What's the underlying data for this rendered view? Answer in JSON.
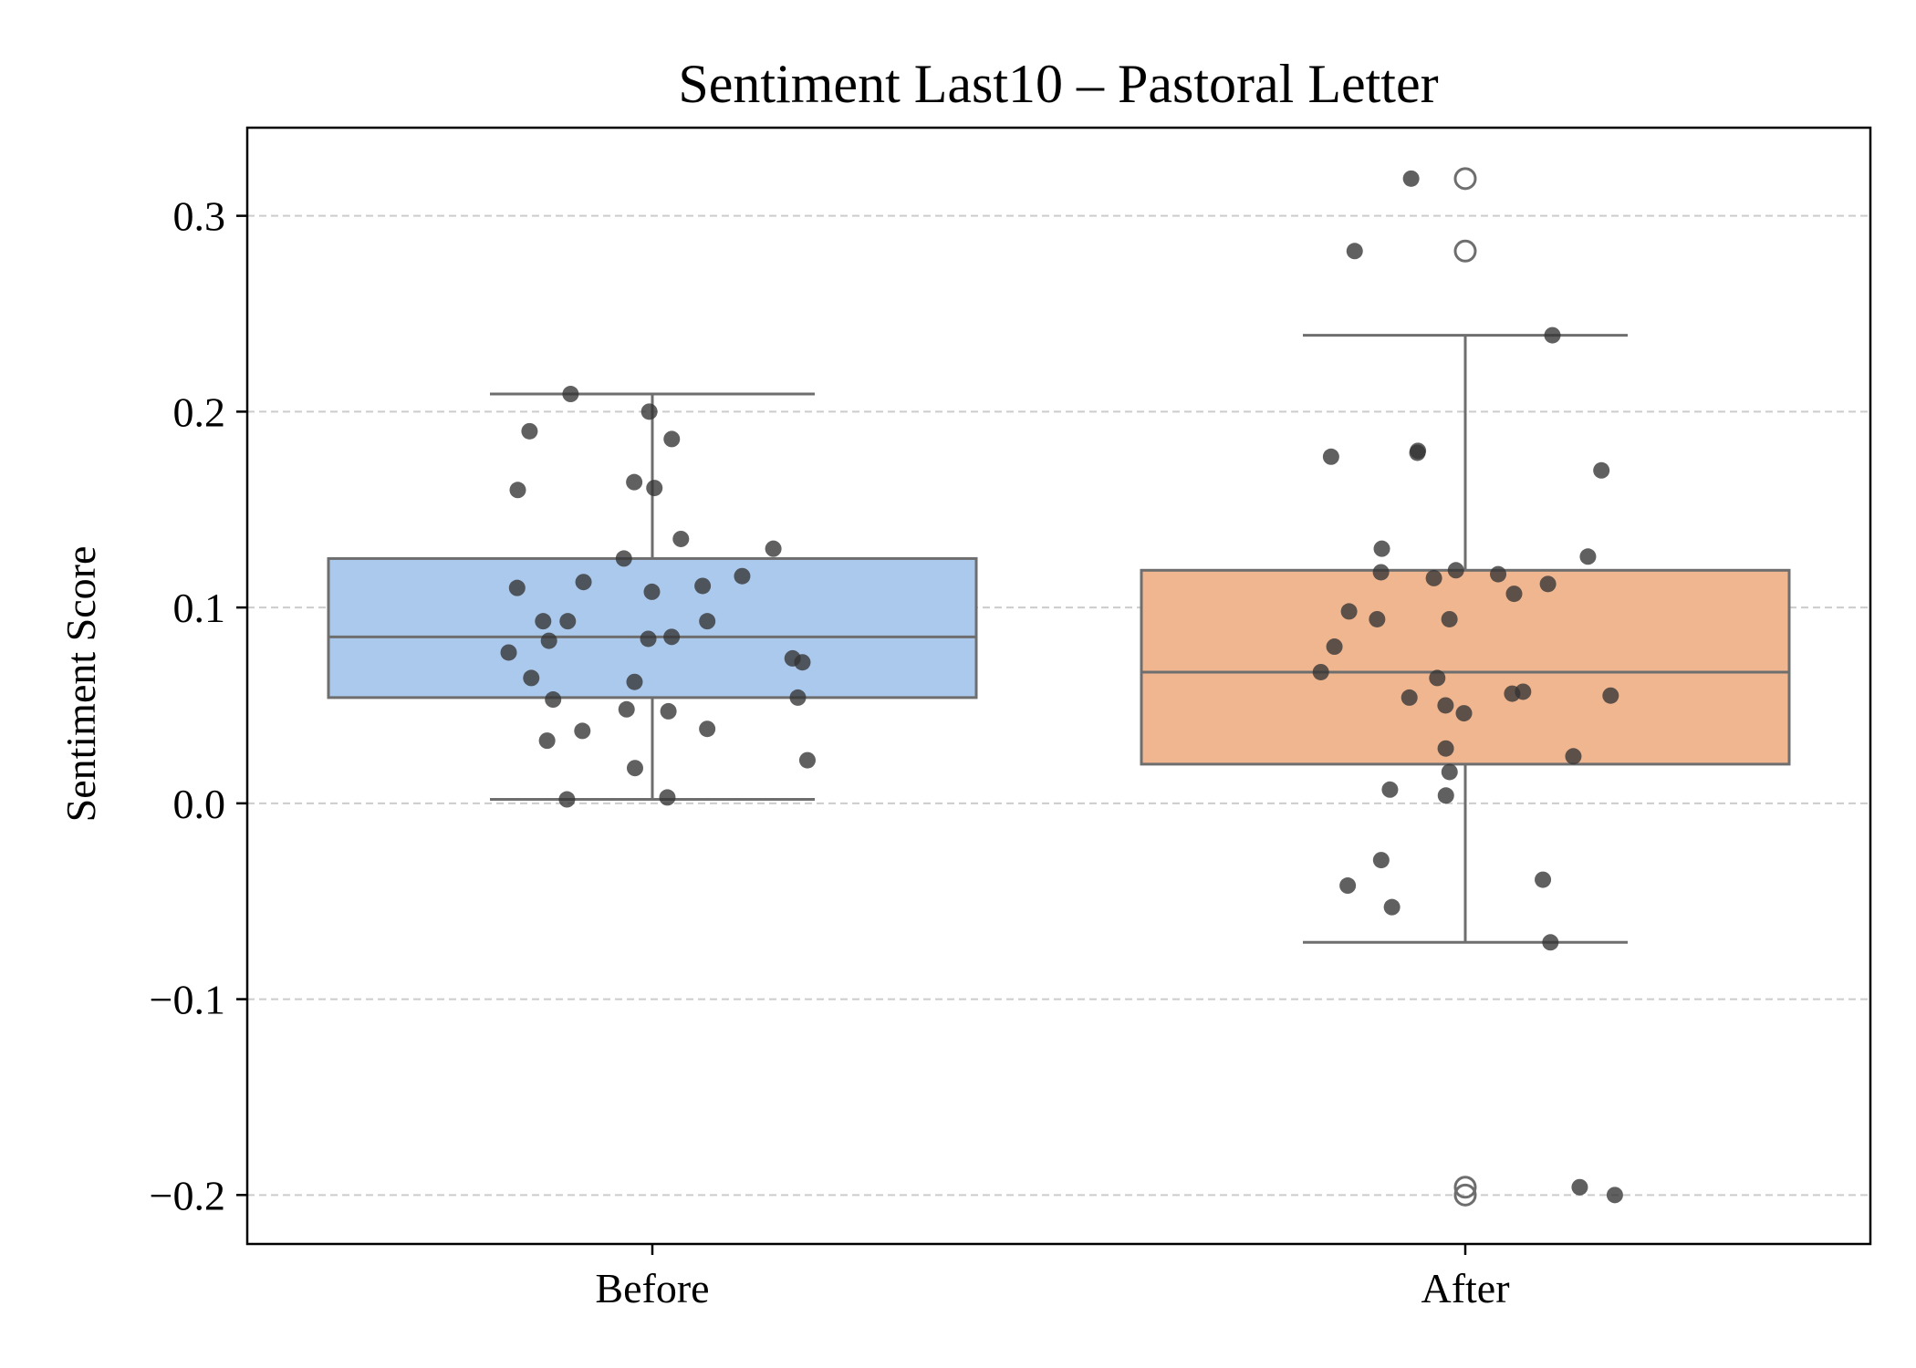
{
  "chart_data": {
    "type": "box",
    "title": "Sentiment Last10 – Pastoral Letter",
    "xlabel": "",
    "ylabel": "Sentiment Score",
    "categories": [
      "Before",
      "After"
    ],
    "ylim": [
      -0.225,
      0.345
    ],
    "yticks": [
      -0.2,
      -0.1,
      0.0,
      0.1,
      0.2,
      0.3
    ],
    "ytick_labels": [
      "−0.2",
      "−0.1",
      "0.0",
      "0.1",
      "0.2",
      "0.3"
    ],
    "grid": {
      "axis": "y",
      "style": "dashed"
    },
    "colors": {
      "Before": "#abc9ec",
      "After": "#f0b690",
      "box_edge": "#6e6e6e",
      "points": "#333333"
    },
    "boxes": [
      {
        "category": "Before",
        "whisker_low": 0.002,
        "q1": 0.054,
        "median": 0.085,
        "q3": 0.125,
        "whisker_high": 0.209,
        "outliers": []
      },
      {
        "category": "After",
        "whisker_low": -0.071,
        "q1": 0.02,
        "median": 0.067,
        "q3": 0.119,
        "whisker_high": 0.239,
        "outliers": [
          0.319,
          0.282,
          -0.196,
          -0.2
        ]
      }
    ],
    "points": [
      {
        "category": "Before",
        "values": [
          0.2,
          0.186,
          0.19,
          0.209,
          0.164,
          0.161,
          0.16,
          0.13,
          0.135,
          0.125,
          0.113,
          0.116,
          0.111,
          0.11,
          0.108,
          0.093,
          0.093,
          0.093,
          0.085,
          0.084,
          0.083,
          0.077,
          0.074,
          0.072,
          0.064,
          0.062,
          0.054,
          0.053,
          0.048,
          0.047,
          0.038,
          0.037,
          0.032,
          0.022,
          0.018,
          0.002,
          0.003
        ]
      },
      {
        "category": "After",
        "values": [
          0.319,
          0.282,
          0.239,
          0.18,
          0.179,
          0.177,
          0.17,
          0.13,
          0.126,
          0.119,
          0.118,
          0.117,
          0.115,
          0.112,
          0.107,
          0.098,
          0.094,
          0.094,
          0.08,
          0.067,
          0.064,
          0.057,
          0.056,
          0.055,
          0.054,
          0.05,
          0.046,
          0.028,
          0.024,
          0.016,
          0.004,
          0.007,
          -0.029,
          -0.039,
          -0.042,
          -0.053,
          -0.071,
          -0.196,
          -0.2
        ]
      }
    ]
  }
}
